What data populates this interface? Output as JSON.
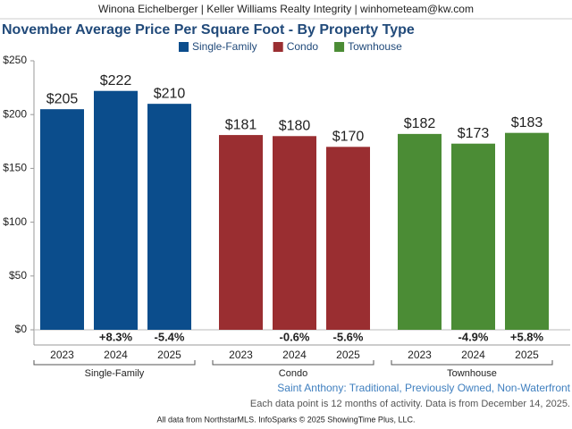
{
  "header": "Winona Eichelberger | Keller Williams Realty Integrity | winhometeam@kw.com",
  "chart_data": {
    "type": "bar",
    "title": "November Average Price Per Square Foot - By Property Type",
    "categories": [
      "2023",
      "2024",
      "2025"
    ],
    "series": [
      {
        "name": "Single-Family",
        "color": "#0b4d8c",
        "values": [
          205,
          222,
          210
        ],
        "value_labels": [
          "$205",
          "$222",
          "$210"
        ],
        "change_labels": [
          null,
          "+8.3%",
          "-5.4%"
        ]
      },
      {
        "name": "Condo",
        "color": "#9a2e31",
        "values": [
          181,
          180,
          170
        ],
        "value_labels": [
          "$181",
          "$180",
          "$170"
        ],
        "change_labels": [
          null,
          "-0.6%",
          "-5.6%"
        ]
      },
      {
        "name": "Townhouse",
        "color": "#4b8c35",
        "values": [
          182,
          173,
          183
        ],
        "value_labels": [
          "$182",
          "$173",
          "$183"
        ],
        "change_labels": [
          null,
          "-4.9%",
          "+5.8%"
        ]
      }
    ],
    "ylim": [
      0,
      250
    ],
    "yticks": [
      {
        "value": 0,
        "label": "$0"
      },
      {
        "value": 50,
        "label": "$50"
      },
      {
        "value": 100,
        "label": "$100"
      },
      {
        "value": 150,
        "label": "$150"
      },
      {
        "value": 200,
        "label": "$200"
      },
      {
        "value": 250,
        "label": "$250"
      }
    ],
    "legend": "top"
  },
  "footer": {
    "area": "Saint Anthony: Traditional, Previously Owned, Non-Waterfront",
    "note": "Each data point is 12 months of activity. Data is from December 14, 2025.",
    "credit": "All data from NorthstarMLS. InfoSparks © 2025 ShowingTime Plus, LLC."
  }
}
